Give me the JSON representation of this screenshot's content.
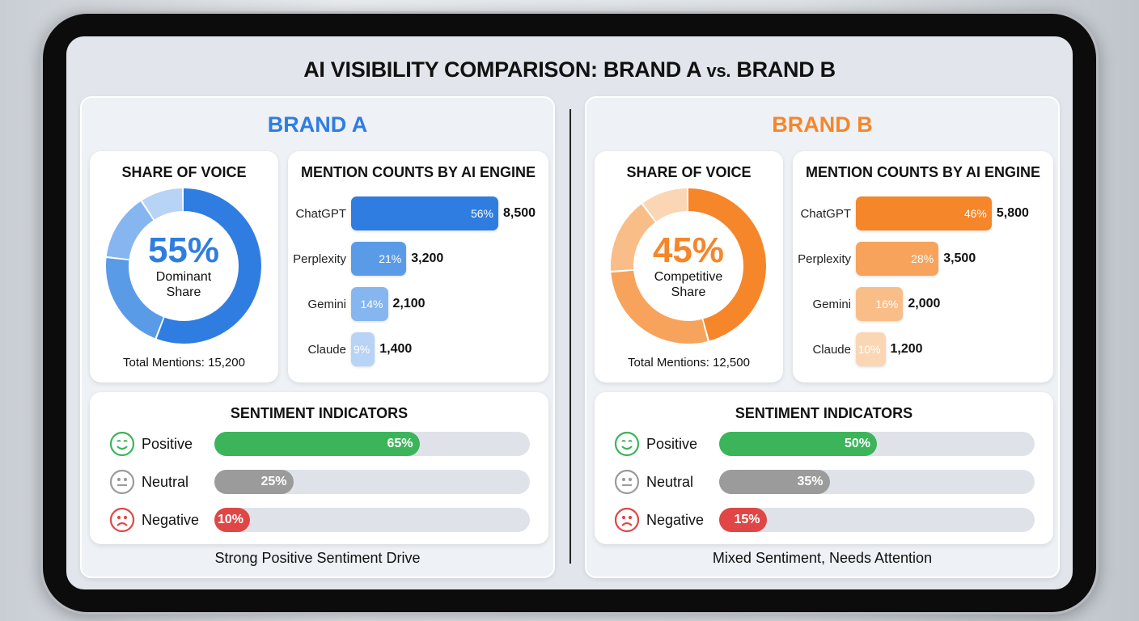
{
  "title": {
    "main": "AI VISIBILITY COMPARISON: BRAND A ",
    "vs": "vs.",
    "end": " BRAND B"
  },
  "brands": [
    {
      "name": "BRAND A",
      "color": "#2f7de1",
      "shades": [
        "#2f7de1",
        "#5a9be8",
        "#86b6ef",
        "#b7d3f6"
      ],
      "sov": {
        "heading": "SHARE OF VOICE",
        "value": "55%",
        "label": "Dominant Share",
        "total": "Total Mentions: 15,200"
      },
      "mentions": {
        "heading": "MENTION COUNTS BY AI ENGINE",
        "items": [
          {
            "engine": "ChatGPT",
            "pct": 56,
            "pct_label": "56%",
            "count": "8,500"
          },
          {
            "engine": "Perplexity",
            "pct": 21,
            "pct_label": "21%",
            "count": "3,200"
          },
          {
            "engine": "Gemini",
            "pct": 14,
            "pct_label": "14%",
            "count": "2,100"
          },
          {
            "engine": "Claude",
            "pct": 9,
            "pct_label": "9%",
            "count": "1,400"
          }
        ]
      },
      "sentiment": {
        "heading": "SENTIMENT INDICATORS",
        "items": [
          {
            "label": "Positive",
            "pct": 65,
            "pct_label": "65%",
            "icon": "smile-icon",
            "color": "#3cb55a"
          },
          {
            "label": "Neutral",
            "pct": 25,
            "pct_label": "25%",
            "icon": "neutral-face-icon",
            "color": "#9b9b9b"
          },
          {
            "label": "Negative",
            "pct": 10,
            "pct_label": "10%",
            "icon": "frown-icon",
            "color": "#e04646"
          }
        ]
      },
      "caption": "Strong Positive Sentiment Drive"
    },
    {
      "name": "BRAND B",
      "color": "#f5862a",
      "shades": [
        "#f5862a",
        "#f7a35c",
        "#f9bd88",
        "#fbd6b5"
      ],
      "sov": {
        "heading": "SHARE OF VOICE",
        "value": "45%",
        "label": "Competitive Share",
        "total": "Total Mentions: 12,500"
      },
      "mentions": {
        "heading": "MENTION COUNTS BY AI ENGINE",
        "items": [
          {
            "engine": "ChatGPT",
            "pct": 46,
            "pct_label": "46%",
            "count": "5,800"
          },
          {
            "engine": "Perplexity",
            "pct": 28,
            "pct_label": "28%",
            "count": "3,500"
          },
          {
            "engine": "Gemini",
            "pct": 16,
            "pct_label": "16%",
            "count": "2,000"
          },
          {
            "engine": "Claude",
            "pct": 10,
            "pct_label": "10%",
            "count": "1,200"
          }
        ]
      },
      "sentiment": {
        "heading": "SENTIMENT INDICATORS",
        "items": [
          {
            "label": "Positive",
            "pct": 50,
            "pct_label": "50%",
            "icon": "smile-icon",
            "color": "#3cb55a"
          },
          {
            "label": "Neutral",
            "pct": 35,
            "pct_label": "35%",
            "icon": "neutral-face-icon",
            "color": "#9b9b9b"
          },
          {
            "label": "Negative",
            "pct": 15,
            "pct_label": "15%",
            "icon": "frown-icon",
            "color": "#e04646"
          }
        ]
      },
      "caption": "Mixed Sentiment, Needs Attention"
    }
  ]
}
